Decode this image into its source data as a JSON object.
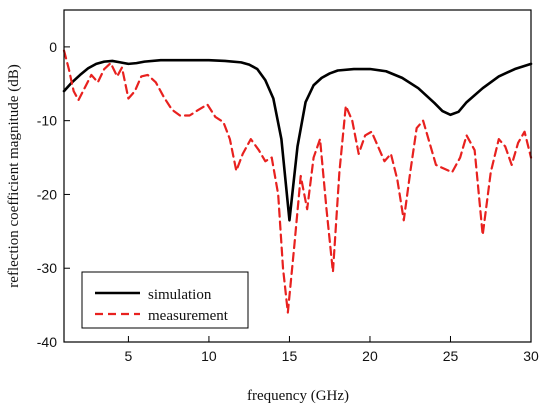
{
  "chart_data": {
    "type": "line",
    "xlabel": "frequency (GHz)",
    "ylabel": "reflection coefficient magnitude (dB)",
    "xlim": [
      1,
      30
    ],
    "ylim": [
      -40,
      5
    ],
    "x_ticks": [
      5,
      10,
      15,
      20,
      25,
      30
    ],
    "y_ticks": [
      0,
      -10,
      -20,
      -30,
      -40
    ],
    "grid": false,
    "legend_position": "bottom-left",
    "series": [
      {
        "name": "simulation",
        "color": "#000000",
        "style": "solid",
        "points": [
          [
            1,
            -6.0
          ],
          [
            1.5,
            -4.8
          ],
          [
            2,
            -3.8
          ],
          [
            2.5,
            -2.9
          ],
          [
            3,
            -2.3
          ],
          [
            3.5,
            -2.0
          ],
          [
            4,
            -1.9
          ],
          [
            4.5,
            -2.1
          ],
          [
            5,
            -2.3
          ],
          [
            5.5,
            -2.2
          ],
          [
            6,
            -2.0
          ],
          [
            7,
            -1.8
          ],
          [
            8,
            -1.8
          ],
          [
            9,
            -1.8
          ],
          [
            10,
            -1.8
          ],
          [
            11,
            -1.9
          ],
          [
            12,
            -2.1
          ],
          [
            12.5,
            -2.4
          ],
          [
            13,
            -3.0
          ],
          [
            13.5,
            -4.5
          ],
          [
            14,
            -7.0
          ],
          [
            14.5,
            -12.5
          ],
          [
            15,
            -23.5
          ],
          [
            15.5,
            -13.5
          ],
          [
            16,
            -7.5
          ],
          [
            16.5,
            -5.2
          ],
          [
            17,
            -4.2
          ],
          [
            17.5,
            -3.6
          ],
          [
            18,
            -3.2
          ],
          [
            19,
            -3.0
          ],
          [
            20,
            -3.0
          ],
          [
            21,
            -3.3
          ],
          [
            22,
            -4.2
          ],
          [
            23,
            -5.6
          ],
          [
            24,
            -7.6
          ],
          [
            24.5,
            -8.7
          ],
          [
            25,
            -9.2
          ],
          [
            25.5,
            -8.8
          ],
          [
            26,
            -7.5
          ],
          [
            27,
            -5.6
          ],
          [
            28,
            -4.0
          ],
          [
            29,
            -3.0
          ],
          [
            30,
            -2.3
          ]
        ]
      },
      {
        "name": "measurement",
        "color": "#e8211f",
        "style": "dashed",
        "points": [
          [
            1,
            -0.5
          ],
          [
            1.3,
            -3.0
          ],
          [
            1.6,
            -6.0
          ],
          [
            1.9,
            -7.2
          ],
          [
            2.3,
            -5.5
          ],
          [
            2.7,
            -3.8
          ],
          [
            3.1,
            -4.8
          ],
          [
            3.5,
            -3.0
          ],
          [
            3.9,
            -2.2
          ],
          [
            4.3,
            -4.0
          ],
          [
            4.6,
            -2.8
          ],
          [
            5,
            -7.0
          ],
          [
            5.4,
            -6.0
          ],
          [
            5.8,
            -4.0
          ],
          [
            6.2,
            -3.8
          ],
          [
            6.7,
            -4.8
          ],
          [
            7.2,
            -6.8
          ],
          [
            7.7,
            -8.5
          ],
          [
            8.2,
            -9.3
          ],
          [
            8.8,
            -9.3
          ],
          [
            9.3,
            -8.6
          ],
          [
            9.9,
            -7.8
          ],
          [
            10.4,
            -9.5
          ],
          [
            10.9,
            -10.2
          ],
          [
            11.3,
            -12.5
          ],
          [
            11.7,
            -16.8
          ],
          [
            12.1,
            -14.5
          ],
          [
            12.6,
            -12.5
          ],
          [
            13.1,
            -14.0
          ],
          [
            13.5,
            -15.5
          ],
          [
            13.9,
            -15.0
          ],
          [
            14.3,
            -20.0
          ],
          [
            14.6,
            -30.0
          ],
          [
            14.9,
            -36.0
          ],
          [
            15.3,
            -27.0
          ],
          [
            15.7,
            -17.5
          ],
          [
            16.1,
            -22.0
          ],
          [
            16.5,
            -15.0
          ],
          [
            16.9,
            -12.5
          ],
          [
            17.3,
            -22.0
          ],
          [
            17.7,
            -30.5
          ],
          [
            18.1,
            -17.0
          ],
          [
            18.5,
            -8.0
          ],
          [
            18.9,
            -10.0
          ],
          [
            19.3,
            -14.5
          ],
          [
            19.7,
            -12.0
          ],
          [
            20.1,
            -11.5
          ],
          [
            20.5,
            -13.5
          ],
          [
            20.9,
            -15.5
          ],
          [
            21.3,
            -14.5
          ],
          [
            21.7,
            -18.0
          ],
          [
            22.1,
            -23.5
          ],
          [
            22.5,
            -17.0
          ],
          [
            22.9,
            -11.0
          ],
          [
            23.3,
            -10.0
          ],
          [
            23.7,
            -13.0
          ],
          [
            24.1,
            -16.0
          ],
          [
            24.6,
            -16.5
          ],
          [
            25.1,
            -17.0
          ],
          [
            25.6,
            -15.0
          ],
          [
            26,
            -12.0
          ],
          [
            26.5,
            -14.0
          ],
          [
            27,
            -25.5
          ],
          [
            27.5,
            -17.0
          ],
          [
            28,
            -12.5
          ],
          [
            28.4,
            -13.5
          ],
          [
            28.8,
            -16.0
          ],
          [
            29.2,
            -13.0
          ],
          [
            29.6,
            -11.5
          ],
          [
            30,
            -15.0
          ]
        ]
      }
    ]
  }
}
